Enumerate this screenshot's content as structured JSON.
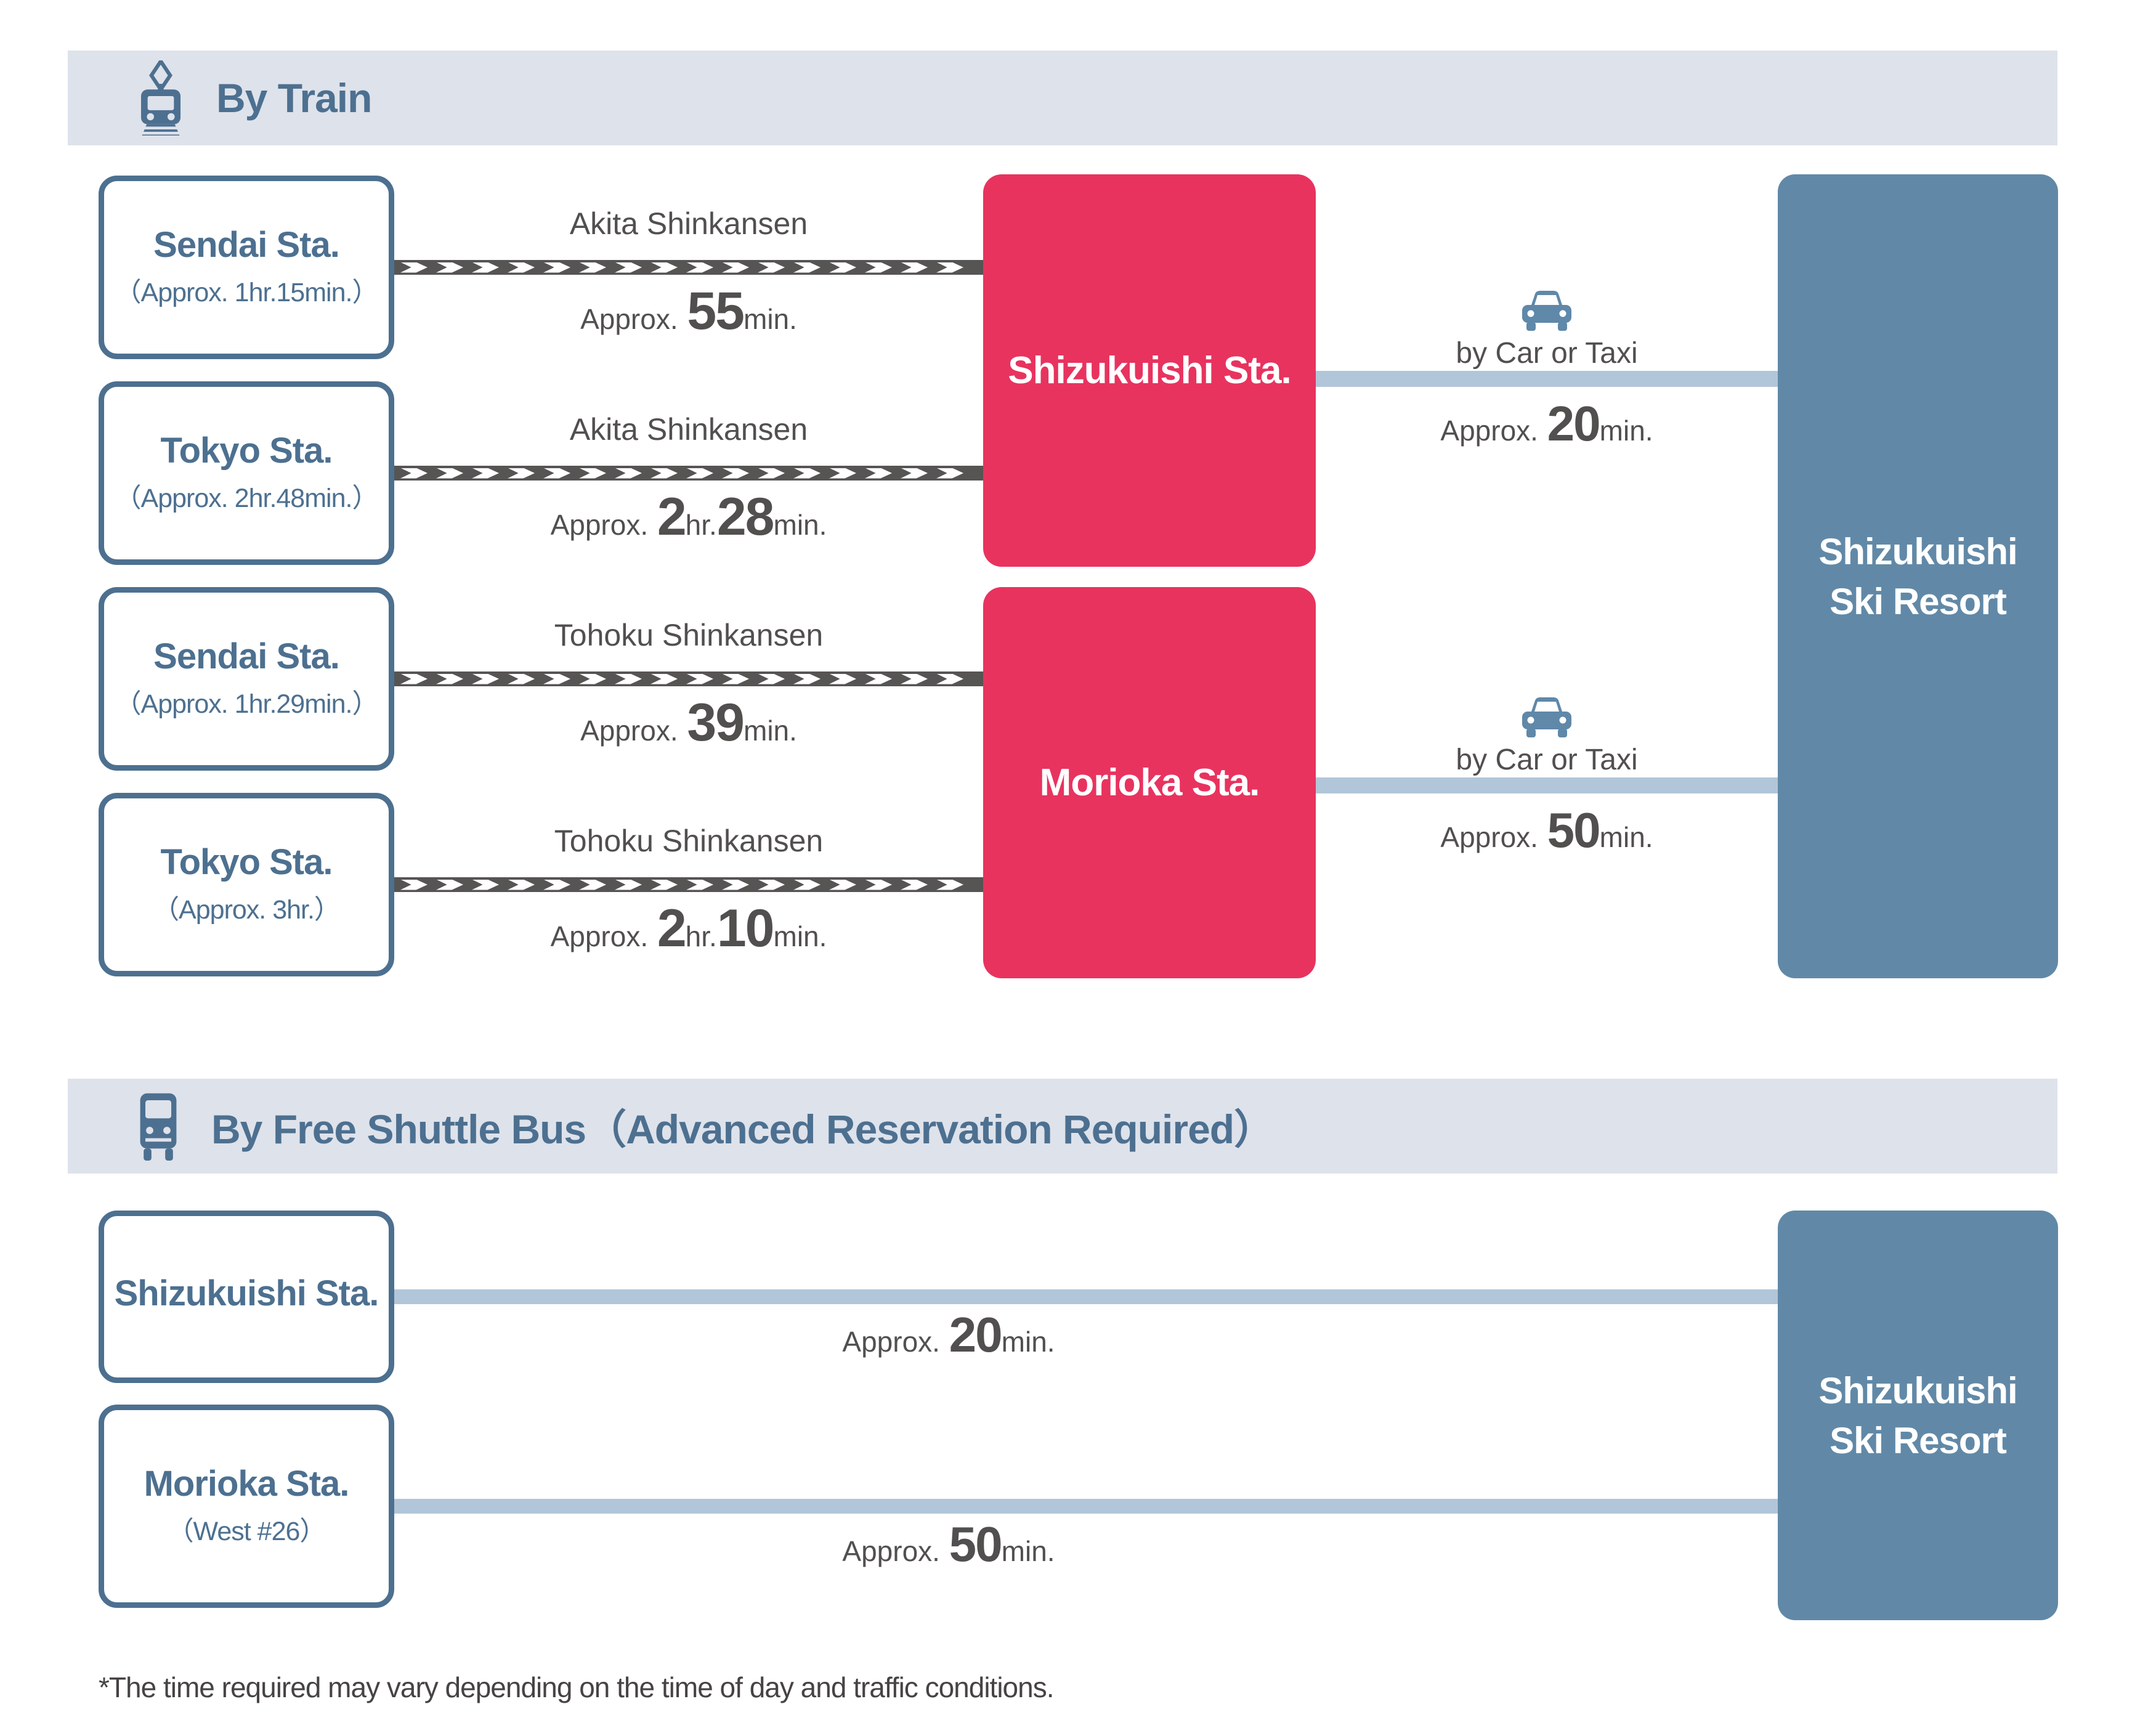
{
  "colors": {
    "slate": "#4d7090",
    "band_bg": "#dee2eb",
    "pink": "#e8335f",
    "resort_blue": "#6189a7",
    "light_blue": "#b2c6d9",
    "dark_band": "#575454",
    "text_dark": "#524f4f",
    "car_blue": "#5f88a9",
    "footnote": "#474343"
  },
  "train": {
    "title": "By Train",
    "routes": [
      {
        "origin": "Sendai Sta.",
        "note": "（Approx. 1hr.15min.）",
        "line": "Akita Shinkansen",
        "time": {
          "prefix": "Approx.",
          "num1": "55",
          "unit1": "min.",
          "num2": "",
          "unit2": ""
        }
      },
      {
        "origin": "Tokyo Sta.",
        "note": "（Approx. 2hr.48min.）",
        "line": "Akita Shinkansen",
        "time": {
          "prefix": "Approx.",
          "num1": "2",
          "unit1": "hr.",
          "num2": "28",
          "unit2": "min."
        }
      },
      {
        "origin": "Sendai Sta.",
        "note": "（Approx. 1hr.29min.）",
        "line": "Tohoku Shinkansen",
        "time": {
          "prefix": "Approx.",
          "num1": "39",
          "unit1": "min.",
          "num2": "",
          "unit2": ""
        }
      },
      {
        "origin": "Tokyo Sta.",
        "note": "（Approx. 3hr.）",
        "line": "Tohoku Shinkansen",
        "time": {
          "prefix": "Approx.",
          "num1": "2",
          "unit1": "hr.",
          "num2": "10",
          "unit2": "min."
        }
      }
    ],
    "hubs": [
      {
        "name": "Shizukuishi Sta."
      },
      {
        "name": "Morioka Sta."
      }
    ],
    "transfers": [
      {
        "label": "by Car or Taxi",
        "time": {
          "prefix": "Approx.",
          "num1": "20",
          "unit1": "min.",
          "num2": "",
          "unit2": ""
        }
      },
      {
        "label": "by Car or Taxi",
        "time": {
          "prefix": "Approx.",
          "num1": "50",
          "unit1": "min.",
          "num2": "",
          "unit2": ""
        }
      }
    ],
    "destination": {
      "line1": "Shizukuishi",
      "line2": "Ski Resort"
    }
  },
  "bus": {
    "title": "By Free Shuttle Bus（Advanced Reservation Required）",
    "routes": [
      {
        "name": "Shizukuishi Sta.",
        "note": "",
        "time": {
          "prefix": "Approx.",
          "num1": "20",
          "unit1": "min.",
          "num2": "",
          "unit2": ""
        }
      },
      {
        "name": "Morioka Sta.",
        "note": "（West #26）",
        "time": {
          "prefix": "Approx.",
          "num1": "50",
          "unit1": "min.",
          "num2": "",
          "unit2": ""
        }
      }
    ],
    "destination": {
      "line1": "Shizukuishi",
      "line2": "Ski Resort"
    }
  },
  "footnote": "*The time required may vary depending on the time of day and traffic conditions."
}
